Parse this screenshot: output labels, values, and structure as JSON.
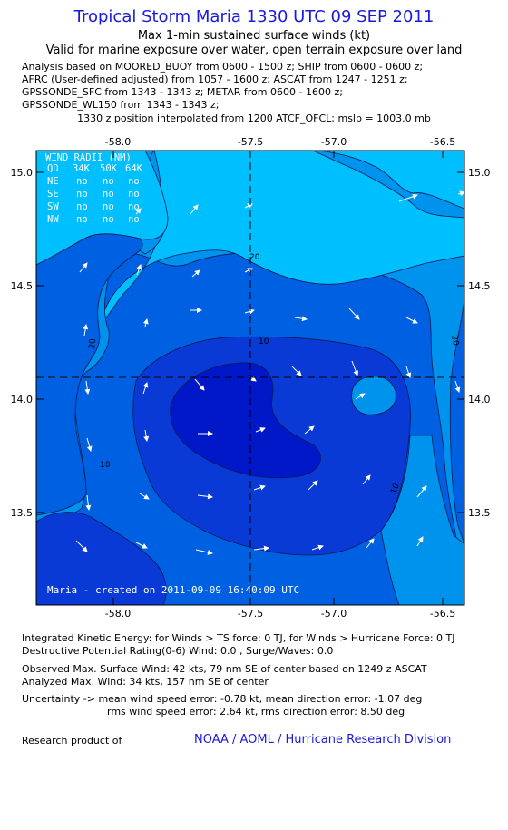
{
  "header": {
    "title": "Tropical Storm Maria 1330 UTC 09 SEP 2011",
    "subtitle1": "Max 1-min sustained surface winds (kt)",
    "subtitle2": "Valid for marine exposure over water, open terrain exposure over land",
    "analysis_lines": [
      "Analysis based on MOORED_BUOY from 0600 - 1500 z; SHIP from 0600 - 0600 z;",
      "AFRC (User-defined adjusted) from 1057 - 1600 z; ASCAT from 1247 - 1251 z;",
      "GPSSONDE_SFC from 1343 - 1343 z; METAR from 0600 - 1600 z;",
      "GPSSONDE_WL150 from 1343 - 1343 z;"
    ],
    "interp_line": "1330 z position interpolated from 1200 ATCF_OFCL; mslp = 1003.0 mb"
  },
  "map": {
    "x_ticks": [
      "-58.0",
      "-57.5",
      "-57.0",
      "-56.5"
    ],
    "y_ticks": [
      "15.0",
      "14.5",
      "14.0",
      "13.5"
    ],
    "contour_labels": [
      "20",
      "20",
      "20",
      "10",
      "10",
      "10"
    ],
    "colors": {
      "lightest": "#00bfff",
      "light": "#0093ee",
      "mid": "#0060e2",
      "dark": "#0a3ad6",
      "darkest": "#0018c8",
      "text": "#ffffff"
    },
    "wind_radii": {
      "title": "WIND RADII (NM)",
      "headers": [
        "QD",
        "34K",
        "50K",
        "64K"
      ],
      "rows": [
        [
          "NE",
          "no",
          "no",
          "no"
        ],
        [
          "SE",
          "no",
          "no",
          "no"
        ],
        [
          "SW",
          "no",
          "no",
          "no"
        ],
        [
          "NW",
          "no",
          "no",
          "no"
        ]
      ]
    },
    "created": "Maria - created on 2011-09-09 16:40:09 UTC"
  },
  "footer": {
    "ike": "Integrated Kinetic Energy:  for Winds > TS force: 0 TJ,  for Winds > Hurricane Force: 0 TJ",
    "dpr": "Destructive Potential Rating(0-6)   Wind: 0.0 , Surge/Waves: 0.0",
    "obs_max": "Observed Max. Surface Wind: 42 kts, 79 nm SE of center based on 1249 z ASCAT",
    "analyzed_max": "Analyzed Max. Wind: 34 kts, 157 nm SE of center",
    "uncert1": "Uncertainty -> mean wind speed error:  -0.78 kt,   mean direction error:  -1.07 deg",
    "uncert2": "rms wind speed error: 2.64 kt,   rms direction error: 8.50 deg",
    "research_label": "Research product of",
    "research_org": "NOAA / AOML / Hurricane Research Division"
  }
}
